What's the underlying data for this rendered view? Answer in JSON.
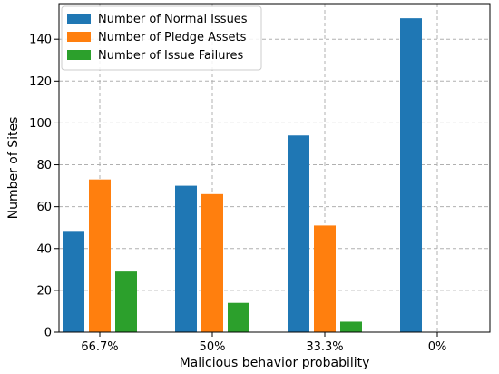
{
  "chart_data": {
    "type": "bar",
    "categories": [
      "66.7%",
      "50%",
      "33.3%",
      "0%"
    ],
    "series": [
      {
        "name": "Number of Normal Issues",
        "color": "#1f77b4",
        "values": [
          48,
          70,
          94,
          150
        ]
      },
      {
        "name": "Number of Pledge Assets",
        "color": "#ff7f0e",
        "values": [
          73,
          66,
          51,
          0
        ]
      },
      {
        "name": "Number of Issue Failures",
        "color": "#2ca02c",
        "values": [
          29,
          14,
          5,
          0
        ]
      }
    ],
    "xlabel": "Malicious behavior probability",
    "ylabel": "Number of Sites",
    "ylim": [
      0,
      157
    ],
    "yticks": [
      0,
      20,
      40,
      60,
      80,
      100,
      120,
      140
    ],
    "grid": true,
    "legend_position": "top-left"
  }
}
